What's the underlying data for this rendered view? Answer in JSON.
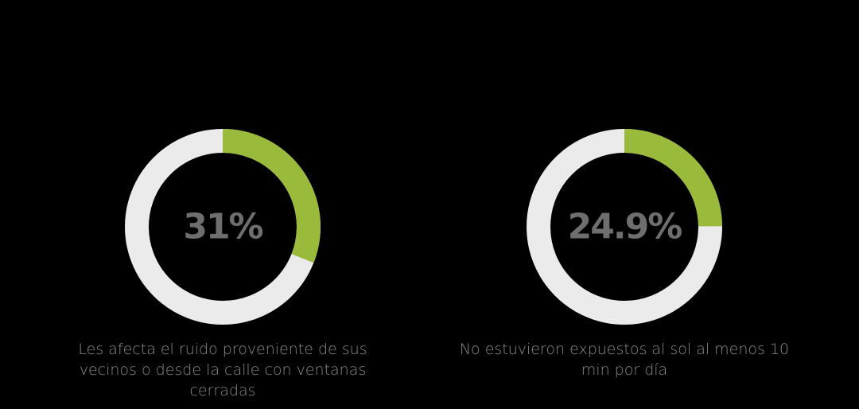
{
  "colors": {
    "accent": "#9aba3c",
    "track": "#ebebeb",
    "percent_text": "#6e6e6e",
    "caption_text": "#8a8a8a",
    "background": "#000000"
  },
  "chart_data": [
    {
      "type": "pie",
      "variant": "donut",
      "value": 31,
      "unit": "%",
      "center_label": "31%",
      "caption": "Les afecta el ruido proveniente de sus vecinos o desde la calle con ventanas cerradas"
    },
    {
      "type": "pie",
      "variant": "donut",
      "value": 24.9,
      "unit": "%",
      "center_label": "24.9%",
      "caption": "No estuvieron expuestos al sol al menos 10 min por día"
    }
  ]
}
